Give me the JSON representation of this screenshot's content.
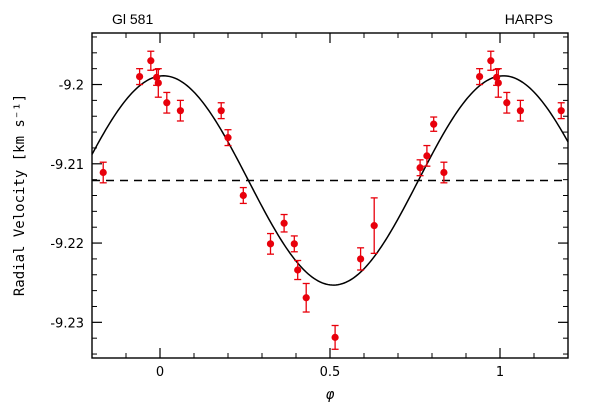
{
  "chart_data": {
    "type": "scatter",
    "label_left": "Gl 581",
    "label_right": "HARPS",
    "xlabel": "φ",
    "ylabel": "Radial Velocity [km s⁻¹]",
    "xlim": [
      -0.2,
      1.2
    ],
    "ylim": [
      -9.2345,
      -9.1935
    ],
    "x_ticks": [
      {
        "value": 0,
        "label": "0"
      },
      {
        "value": 0.5,
        "label": "0.5"
      },
      {
        "value": 1,
        "label": "1"
      }
    ],
    "y_ticks": [
      {
        "value": -9.23,
        "label": "-9.23"
      },
      {
        "value": -9.22,
        "label": "-9.22"
      },
      {
        "value": -9.21,
        "label": "-9.21"
      },
      {
        "value": -9.2,
        "label": "-9.2"
      }
    ],
    "mean_level": -9.2121,
    "fit_curve": {
      "offset": -9.2121,
      "amplitude": 0.0132,
      "phase_of_max": 0.01
    },
    "series": [
      {
        "color": "#e8000b",
        "points": [
          {
            "x": -0.167,
            "y": -9.2111,
            "err": 0.0013
          },
          {
            "x": -0.06,
            "y": -9.199,
            "err": 0.001
          },
          {
            "x": -0.027,
            "y": -9.197,
            "err": 0.0012
          },
          {
            "x": -0.01,
            "y": -9.1991,
            "err": 0.001
          },
          {
            "x": -0.005,
            "y": -9.1998,
            "err": 0.0018
          },
          {
            "x": 0.02,
            "y": -9.2023,
            "err": 0.0013
          },
          {
            "x": 0.06,
            "y": -9.2033,
            "err": 0.0013
          },
          {
            "x": 0.18,
            "y": -9.2033,
            "err": 0.001
          },
          {
            "x": 0.2,
            "y": -9.2067,
            "err": 0.001
          },
          {
            "x": 0.245,
            "y": -9.214,
            "err": 0.001
          },
          {
            "x": 0.325,
            "y": -9.2201,
            "err": 0.0013
          },
          {
            "x": 0.365,
            "y": -9.2175,
            "err": 0.0011
          },
          {
            "x": 0.395,
            "y": -9.2201,
            "err": 0.001
          },
          {
            "x": 0.405,
            "y": -9.2234,
            "err": 0.0012
          },
          {
            "x": 0.43,
            "y": -9.2269,
            "err": 0.0018
          },
          {
            "x": 0.515,
            "y": -9.2319,
            "err": 0.0015
          },
          {
            "x": 0.59,
            "y": -9.222,
            "err": 0.0014
          },
          {
            "x": 0.63,
            "y": -9.2178,
            "err": 0.0035
          },
          {
            "x": 0.765,
            "y": -9.2105,
            "err": 0.001
          },
          {
            "x": 0.785,
            "y": -9.209,
            "err": 0.0013
          },
          {
            "x": 0.805,
            "y": -9.205,
            "err": 0.0009
          },
          {
            "x": 0.835,
            "y": -9.2111,
            "err": 0.0013
          },
          {
            "x": 0.94,
            "y": -9.199,
            "err": 0.001
          },
          {
            "x": 0.973,
            "y": -9.197,
            "err": 0.0012
          },
          {
            "x": 0.99,
            "y": -9.1991,
            "err": 0.001
          },
          {
            "x": 0.995,
            "y": -9.1998,
            "err": 0.0018
          },
          {
            "x": 1.02,
            "y": -9.2023,
            "err": 0.0013
          },
          {
            "x": 1.06,
            "y": -9.2033,
            "err": 0.0013
          },
          {
            "x": 1.18,
            "y": -9.2033,
            "err": 0.001
          }
        ]
      }
    ]
  }
}
